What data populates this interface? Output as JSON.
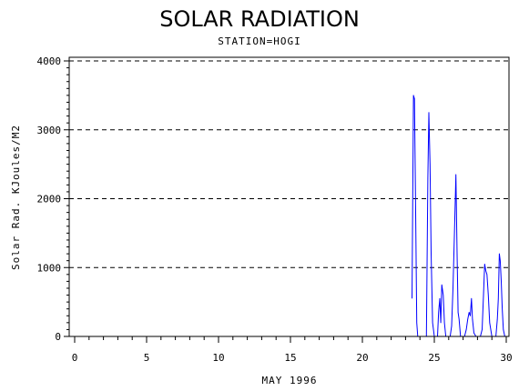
{
  "chart_data": {
    "type": "line",
    "title": "SOLAR RADIATION",
    "subtitle": "STATION=HOGI",
    "xlabel": "MAY 1996",
    "ylabel": "Solar Rad. KJoules/M2",
    "xlim": [
      0,
      30
    ],
    "ylim": [
      0,
      4000
    ],
    "x_ticks": [
      0,
      5,
      10,
      15,
      20,
      25,
      30
    ],
    "y_ticks": [
      0,
      1000,
      2000,
      3000,
      4000
    ],
    "y_tick_labels": [
      "0",
      "1000",
      "2000",
      "3000",
      "4000"
    ],
    "grid": "horizontal dashed",
    "colors": {
      "series": "#0000ff",
      "axes": "#000000",
      "grid": "#000000"
    },
    "series": [
      {
        "x": [
          23.45,
          23.55,
          23.62,
          23.7,
          23.78,
          23.85,
          23.95,
          24.05,
          24.15,
          24.25,
          24.35,
          24.45,
          24.55,
          24.62,
          24.7,
          24.78,
          24.88,
          25.0,
          25.12,
          25.22,
          25.3,
          25.38,
          25.45,
          25.52,
          25.62,
          25.7,
          25.8,
          25.9,
          26.0,
          26.1,
          26.2,
          26.3,
          26.4,
          26.5,
          26.58,
          26.65,
          26.72,
          26.82,
          26.95,
          27.1,
          27.22,
          27.32,
          27.42,
          27.5,
          27.58,
          27.65,
          27.75,
          27.9,
          28.05,
          28.2,
          28.32,
          28.42,
          28.5,
          28.58,
          28.66,
          28.75,
          28.85,
          29.0,
          29.15,
          29.28,
          29.38,
          29.45,
          29.52,
          29.58,
          29.65,
          29.72,
          29.8,
          29.9,
          30.0
        ],
        "y": [
          550,
          3500,
          3450,
          1800,
          200,
          0,
          0,
          0,
          0,
          0,
          0,
          0,
          2300,
          3250,
          2500,
          1200,
          200,
          0,
          0,
          0,
          350,
          550,
          200,
          750,
          600,
          200,
          0,
          0,
          0,
          0,
          150,
          700,
          1500,
          2350,
          1200,
          350,
          250,
          0,
          0,
          0,
          100,
          250,
          350,
          300,
          550,
          250,
          50,
          0,
          0,
          0,
          100,
          600,
          1050,
          950,
          900,
          600,
          200,
          0,
          0,
          0,
          250,
          550,
          1200,
          1100,
          800,
          400,
          100,
          0,
          0
        ]
      }
    ]
  }
}
